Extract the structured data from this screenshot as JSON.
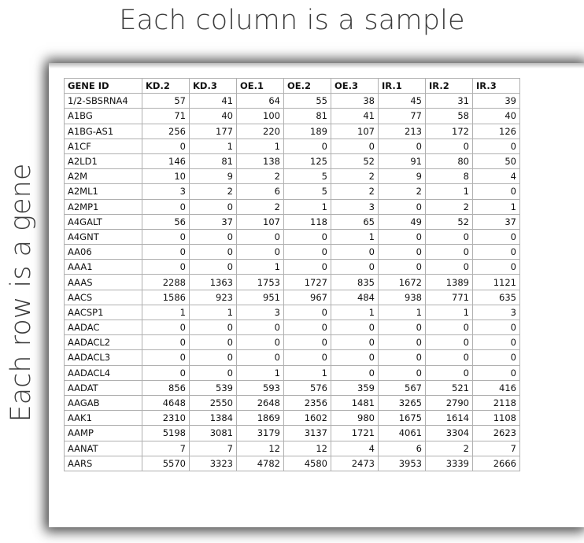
{
  "title_top": "Each column is a sample",
  "title_side": "Each row is a gene",
  "table": {
    "headers": [
      "GENE ID",
      "KD.2",
      "KD.3",
      "OE.1",
      "OE.2",
      "OE.3",
      "IR.1",
      "IR.2",
      "IR.3"
    ],
    "rows": [
      [
        "1/2-SBSRNA4",
        "57",
        "41",
        "64",
        "55",
        "38",
        "45",
        "31",
        "39"
      ],
      [
        "A1BG",
        "71",
        "40",
        "100",
        "81",
        "41",
        "77",
        "58",
        "40"
      ],
      [
        "A1BG-AS1",
        "256",
        "177",
        "220",
        "189",
        "107",
        "213",
        "172",
        "126"
      ],
      [
        "A1CF",
        "0",
        "1",
        "1",
        "0",
        "0",
        "0",
        "0",
        "0"
      ],
      [
        "A2LD1",
        "146",
        "81",
        "138",
        "125",
        "52",
        "91",
        "80",
        "50"
      ],
      [
        "A2M",
        "10",
        "9",
        "2",
        "5",
        "2",
        "9",
        "8",
        "4"
      ],
      [
        "A2ML1",
        "3",
        "2",
        "6",
        "5",
        "2",
        "2",
        "1",
        "0"
      ],
      [
        "A2MP1",
        "0",
        "0",
        "2",
        "1",
        "3",
        "0",
        "2",
        "1"
      ],
      [
        "A4GALT",
        "56",
        "37",
        "107",
        "118",
        "65",
        "49",
        "52",
        "37"
      ],
      [
        "A4GNT",
        "0",
        "0",
        "0",
        "0",
        "1",
        "0",
        "0",
        "0"
      ],
      [
        "AA06",
        "0",
        "0",
        "0",
        "0",
        "0",
        "0",
        "0",
        "0"
      ],
      [
        "AAA1",
        "0",
        "0",
        "1",
        "0",
        "0",
        "0",
        "0",
        "0"
      ],
      [
        "AAAS",
        "2288",
        "1363",
        "1753",
        "1727",
        "835",
        "1672",
        "1389",
        "1121"
      ],
      [
        "AACS",
        "1586",
        "923",
        "951",
        "967",
        "484",
        "938",
        "771",
        "635"
      ],
      [
        "AACSP1",
        "1",
        "1",
        "3",
        "0",
        "1",
        "1",
        "1",
        "3"
      ],
      [
        "AADAC",
        "0",
        "0",
        "0",
        "0",
        "0",
        "0",
        "0",
        "0"
      ],
      [
        "AADACL2",
        "0",
        "0",
        "0",
        "0",
        "0",
        "0",
        "0",
        "0"
      ],
      [
        "AADACL3",
        "0",
        "0",
        "0",
        "0",
        "0",
        "0",
        "0",
        "0"
      ],
      [
        "AADACL4",
        "0",
        "0",
        "1",
        "1",
        "0",
        "0",
        "0",
        "0"
      ],
      [
        "AADAT",
        "856",
        "539",
        "593",
        "576",
        "359",
        "567",
        "521",
        "416"
      ],
      [
        "AAGAB",
        "4648",
        "2550",
        "2648",
        "2356",
        "1481",
        "3265",
        "2790",
        "2118"
      ],
      [
        "AAK1",
        "2310",
        "1384",
        "1869",
        "1602",
        "980",
        "1675",
        "1614",
        "1108"
      ],
      [
        "AAMP",
        "5198",
        "3081",
        "3179",
        "3137",
        "1721",
        "4061",
        "3304",
        "2623"
      ],
      [
        "AANAT",
        "7",
        "7",
        "12",
        "12",
        "4",
        "6",
        "2",
        "7"
      ],
      [
        "AARS",
        "5570",
        "3323",
        "4782",
        "4580",
        "2473",
        "3953",
        "3339",
        "2666"
      ]
    ]
  }
}
